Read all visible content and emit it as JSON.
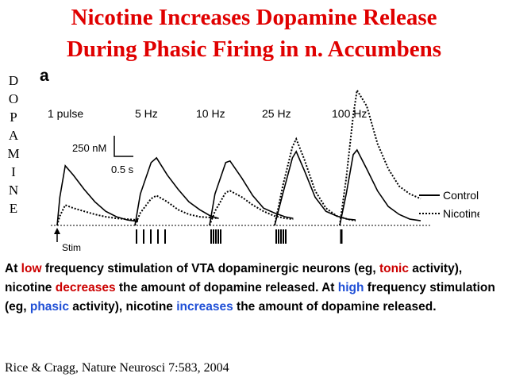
{
  "title_lines": [
    "Nicotine Increases Dopamine Release",
    "During Phasic Firing in n. Accumbens"
  ],
  "y_axis_letters": [
    "D",
    "O",
    "P",
    "A",
    "M",
    "I",
    "N",
    "E"
  ],
  "figure": {
    "panel_label": "a",
    "scale_bar": {
      "y_label": "250 nM",
      "x_label": "0.5 s"
    },
    "stim_label": "Stim",
    "legend": [
      {
        "label": "Control",
        "style": "solid"
      },
      {
        "label": "Nicotine",
        "style": "dotted"
      }
    ]
  },
  "chart_data": {
    "type": "line",
    "title": "",
    "xlabel": "",
    "ylabel": "DOPAMINE",
    "conditions": [
      "1 pulse",
      "5 Hz",
      "10 Hz",
      "25 Hz",
      "100 Hz"
    ],
    "stim_pulses": [
      1,
      5,
      5,
      5,
      1
    ],
    "peak_dopamine_nM": {
      "series": [
        {
          "name": "Control",
          "values": [
            380,
            430,
            410,
            470,
            480
          ]
        },
        {
          "name": "Nicotine",
          "values": [
            130,
            190,
            220,
            550,
            860
          ]
        }
      ],
      "unit": "nM"
    },
    "traces": [
      {
        "condition": "1 pulse",
        "control": [
          [
            0,
            0
          ],
          [
            0.05,
            180
          ],
          [
            0.15,
            380
          ],
          [
            0.3,
            320
          ],
          [
            0.5,
            230
          ],
          [
            0.7,
            150
          ],
          [
            0.9,
            90
          ],
          [
            1.1,
            55
          ],
          [
            1.3,
            35
          ],
          [
            1.5,
            25
          ]
        ],
        "nicotine": [
          [
            0,
            0
          ],
          [
            0.05,
            60
          ],
          [
            0.15,
            130
          ],
          [
            0.3,
            110
          ],
          [
            0.5,
            90
          ],
          [
            0.7,
            70
          ],
          [
            0.9,
            55
          ],
          [
            1.1,
            45
          ],
          [
            1.3,
            40
          ],
          [
            1.5,
            35
          ]
        ]
      },
      {
        "condition": "5 Hz",
        "control": [
          [
            0,
            0
          ],
          [
            0.1,
            200
          ],
          [
            0.3,
            400
          ],
          [
            0.4,
            430
          ],
          [
            0.6,
            320
          ],
          [
            0.8,
            230
          ],
          [
            1.0,
            150
          ],
          [
            1.2,
            100
          ],
          [
            1.4,
            60
          ],
          [
            1.55,
            45
          ]
        ],
        "nicotine": [
          [
            0,
            0
          ],
          [
            0.1,
            80
          ],
          [
            0.3,
            170
          ],
          [
            0.4,
            190
          ],
          [
            0.6,
            150
          ],
          [
            0.8,
            100
          ],
          [
            1.0,
            70
          ],
          [
            1.2,
            55
          ],
          [
            1.4,
            50
          ],
          [
            1.55,
            45
          ]
        ]
      },
      {
        "condition": "10 Hz",
        "control": [
          [
            0,
            0
          ],
          [
            0.1,
            200
          ],
          [
            0.3,
            400
          ],
          [
            0.38,
            410
          ],
          [
            0.6,
            300
          ],
          [
            0.8,
            190
          ],
          [
            1.0,
            110
          ],
          [
            1.2,
            80
          ],
          [
            1.4,
            55
          ],
          [
            1.55,
            45
          ]
        ],
        "nicotine": [
          [
            0,
            0
          ],
          [
            0.1,
            90
          ],
          [
            0.3,
            210
          ],
          [
            0.38,
            220
          ],
          [
            0.6,
            180
          ],
          [
            0.8,
            130
          ],
          [
            1.0,
            90
          ],
          [
            1.2,
            60
          ],
          [
            1.4,
            45
          ],
          [
            1.55,
            40
          ]
        ]
      },
      {
        "condition": "25 Hz",
        "control": [
          [
            0,
            0
          ],
          [
            0.15,
            200
          ],
          [
            0.33,
            430
          ],
          [
            0.4,
            470
          ],
          [
            0.55,
            350
          ],
          [
            0.75,
            180
          ],
          [
            0.95,
            90
          ],
          [
            1.15,
            60
          ],
          [
            1.35,
            40
          ],
          [
            1.5,
            35
          ]
        ],
        "nicotine": [
          [
            0,
            0
          ],
          [
            0.15,
            250
          ],
          [
            0.33,
            500
          ],
          [
            0.4,
            550
          ],
          [
            0.55,
            420
          ],
          [
            0.75,
            220
          ],
          [
            0.95,
            110
          ],
          [
            1.15,
            60
          ],
          [
            1.35,
            40
          ],
          [
            1.5,
            30
          ]
        ]
      },
      {
        "condition": "100 Hz",
        "control": [
          [
            0,
            0
          ],
          [
            0.12,
            200
          ],
          [
            0.25,
            450
          ],
          [
            0.32,
            480
          ],
          [
            0.5,
            360
          ],
          [
            0.7,
            220
          ],
          [
            0.9,
            120
          ],
          [
            1.1,
            70
          ],
          [
            1.3,
            40
          ],
          [
            1.5,
            30
          ]
        ],
        "nicotine": [
          [
            0,
            0
          ],
          [
            0.12,
            300
          ],
          [
            0.25,
            700
          ],
          [
            0.32,
            860
          ],
          [
            0.5,
            760
          ],
          [
            0.7,
            520
          ],
          [
            0.9,
            360
          ],
          [
            1.1,
            250
          ],
          [
            1.3,
            200
          ],
          [
            1.5,
            170
          ]
        ]
      }
    ]
  },
  "body_paragraph": {
    "s1_a": "At ",
    "s1_low": "low",
    "s1_b": " frequency stimulation of VTA dopaminergic neurons (eg, ",
    "s1_tonic": "tonic",
    "s1_c": " activity), nicotine ",
    "s1_decreases": "decreases",
    "s1_d": " the amount of dopamine released.  At ",
    "s2_high": "high",
    "s2_a": " frequency stimulation (eg, ",
    "s2_phasic": "phasic",
    "s2_b": " activity), nicotine ",
    "s2_increases": "increases",
    "s2_c": " the amount of dopamine released."
  },
  "citation": "Rice & Cragg, Nature Neurosci 7:583, 2004",
  "colors": {
    "title": "#e00000",
    "emphasis_red": "#cc0000",
    "emphasis_blue": "#1f4fd6"
  }
}
